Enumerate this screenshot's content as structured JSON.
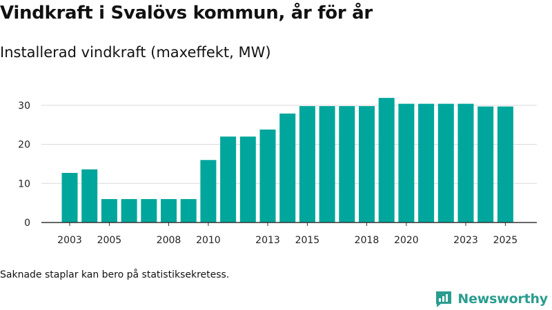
{
  "header": {
    "title": "Vindkraft i Svalövs kommun, år för år",
    "subtitle": "Installerad vindkraft (maxeffekt, MW)"
  },
  "footer": {
    "note": "Saknade staplar kan bero på statistiksekretess.",
    "brand": "Newsworthy"
  },
  "colors": {
    "bar": "#00a69c",
    "grid": "#d9d9d9",
    "axis": "#333333",
    "brand": "#2a9d8f"
  },
  "icons": {
    "brand_logo": "chart-speech-bubble-icon"
  },
  "chart_data": {
    "type": "bar",
    "title": "Installerad vindkraft (maxeffekt, MW)",
    "xlabel": "",
    "ylabel": "",
    "categories": [
      2003,
      2004,
      2005,
      2006,
      2007,
      2008,
      2009,
      2010,
      2011,
      2012,
      2013,
      2014,
      2015,
      2016,
      2017,
      2018,
      2019,
      2020,
      2021,
      2022,
      2023,
      2024,
      2025
    ],
    "values": [
      12.7,
      13.6,
      6.0,
      6.0,
      6.0,
      6.0,
      6.0,
      16.0,
      22.0,
      22.0,
      23.8,
      27.9,
      29.8,
      29.8,
      29.8,
      29.8,
      31.9,
      30.4,
      30.4,
      30.4,
      30.4,
      29.7,
      29.7
    ],
    "ylim": [
      0,
      34
    ],
    "yticks": [
      0,
      10,
      20,
      30
    ],
    "xtick_labels": [
      2003,
      2005,
      2008,
      2010,
      2013,
      2015,
      2018,
      2020,
      2023,
      2025
    ],
    "grid": true
  }
}
